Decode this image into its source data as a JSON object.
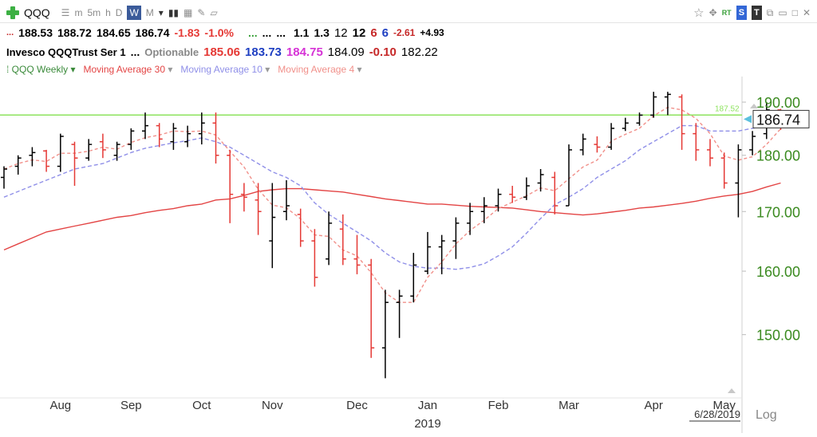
{
  "toolbar": {
    "symbol": "QQQ",
    "intervals": [
      "m",
      "5m",
      "h",
      "D",
      "W",
      "M"
    ],
    "active_interval": "W",
    "badges": [
      "RT",
      "S",
      "T"
    ]
  },
  "quote1": {
    "prefix": "...",
    "open": "188.53",
    "high": "188.72",
    "low": "184.65",
    "close": "186.74",
    "change": "-1.83",
    "change_pct": "-1.0%",
    "dots1": "...",
    "dots2": "...",
    "dots3": "...",
    "v1": "1.1",
    "v2": "1.3",
    "v3": "12",
    "v4": "12",
    "v5": "6",
    "v6": "6",
    "v7": "-2.61",
    "v8": "+4.93"
  },
  "quote2": {
    "name": "Invesco QQQTrust Ser 1",
    "dots": "...",
    "optionable": "Optionable",
    "m1": "185.06",
    "m2": "183.73",
    "m3": "184.75",
    "m4": "184.09",
    "m5": "-0.10",
    "m6": "182.22"
  },
  "legend": {
    "series": [
      "QQQ Weekly",
      "Moving Average 30",
      "Moving Average 10",
      "Moving Average 4"
    ]
  },
  "colors": {
    "up": "#000000",
    "down": "#e53935",
    "ma30": "#e34444",
    "ma10": "#8f8fe8",
    "ma4": "#f1908a",
    "hline": "#8de35e",
    "axis": "#3a8a1f"
  },
  "chart_data": {
    "type": "bar",
    "title": "",
    "ylim": [
      141,
      195
    ],
    "y_ticks": [
      "190.00",
      "180.00",
      "170.00",
      "160.00",
      "150.00"
    ],
    "y_tick_values": [
      190,
      180,
      170,
      160,
      150
    ],
    "x_month_labels": [
      "Aug",
      "Sep",
      "Oct",
      "Nov",
      "Dec",
      "Jan",
      "Feb",
      "Mar",
      "Apr",
      "May"
    ],
    "x_month_week_index": [
      4,
      9,
      14,
      19,
      25,
      30,
      35,
      40,
      46,
      51
    ],
    "year_label": "2019",
    "date_label": "6/28/2019",
    "scale_label": "Log",
    "last_price": "186.74",
    "last_price_value": 186.74,
    "hline_value": 187.52,
    "hline_label": "187.52",
    "weeks": [
      {
        "o": 176,
        "h": 178,
        "l": 174,
        "c": 177.5
      },
      {
        "o": 178,
        "h": 180,
        "l": 176.5,
        "c": 179.5
      },
      {
        "o": 180,
        "h": 181.5,
        "l": 178,
        "c": 180.5
      },
      {
        "o": 180.8,
        "h": 181,
        "l": 177,
        "c": 178
      },
      {
        "o": 178,
        "h": 184,
        "l": 177,
        "c": 183.5
      },
      {
        "o": 182,
        "h": 182.5,
        "l": 174.5,
        "c": 179.5
      },
      {
        "o": 179.5,
        "h": 183,
        "l": 179,
        "c": 182
      },
      {
        "o": 182.5,
        "h": 184,
        "l": 179.5,
        "c": 181
      },
      {
        "o": 180,
        "h": 182.5,
        "l": 179,
        "c": 182
      },
      {
        "o": 182,
        "h": 185,
        "l": 181,
        "c": 184.5
      },
      {
        "o": 184.5,
        "h": 188,
        "l": 183,
        "c": 185.5
      },
      {
        "o": 185.5,
        "h": 186,
        "l": 181.5,
        "c": 183
      },
      {
        "o": 182.5,
        "h": 186,
        "l": 181,
        "c": 185
      },
      {
        "o": 182.5,
        "h": 185.5,
        "l": 181.5,
        "c": 184
      },
      {
        "o": 184,
        "h": 188,
        "l": 182,
        "c": 186
      },
      {
        "o": 186,
        "h": 188,
        "l": 178.5,
        "c": 180
      },
      {
        "o": 180,
        "h": 181,
        "l": 168,
        "c": 173
      },
      {
        "o": 173,
        "h": 175,
        "l": 170,
        "c": 172.5
      },
      {
        "o": 172,
        "h": 175,
        "l": 166,
        "c": 170
      },
      {
        "o": 165,
        "h": 175,
        "l": 160.5,
        "c": 169
      },
      {
        "o": 170,
        "h": 175.5,
        "l": 168.5,
        "c": 171
      },
      {
        "o": 169.5,
        "h": 170.5,
        "l": 164,
        "c": 165
      },
      {
        "o": 165,
        "h": 167,
        "l": 157.5,
        "c": 159
      },
      {
        "o": 162,
        "h": 170,
        "l": 161,
        "c": 168
      },
      {
        "o": 167,
        "h": 169.5,
        "l": 161,
        "c": 162
      },
      {
        "o": 162,
        "h": 166,
        "l": 159.5,
        "c": 161
      },
      {
        "o": 161,
        "h": 162,
        "l": 146.5,
        "c": 148
      },
      {
        "o": 148,
        "h": 157,
        "l": 143.5,
        "c": 155
      },
      {
        "o": 155,
        "h": 157,
        "l": 149.5,
        "c": 156
      },
      {
        "o": 156,
        "h": 163,
        "l": 155,
        "c": 161
      },
      {
        "o": 160,
        "h": 166.5,
        "l": 159.5,
        "c": 164
      },
      {
        "o": 164,
        "h": 166,
        "l": 159.5,
        "c": 165
      },
      {
        "o": 165,
        "h": 169,
        "l": 162,
        "c": 168
      },
      {
        "o": 168,
        "h": 171.5,
        "l": 166,
        "c": 170
      },
      {
        "o": 170,
        "h": 172.5,
        "l": 168,
        "c": 171
      },
      {
        "o": 171,
        "h": 174,
        "l": 170,
        "c": 173
      },
      {
        "o": 173,
        "h": 174.5,
        "l": 171.5,
        "c": 172.5
      },
      {
        "o": 172.5,
        "h": 176,
        "l": 172,
        "c": 174.5
      },
      {
        "o": 175,
        "h": 177.5,
        "l": 173.5,
        "c": 176.5
      },
      {
        "o": 176,
        "h": 177,
        "l": 169.5,
        "c": 171
      },
      {
        "o": 171,
        "h": 182,
        "l": 171,
        "c": 181
      },
      {
        "o": 181,
        "h": 184,
        "l": 180,
        "c": 183
      },
      {
        "o": 182,
        "h": 183.5,
        "l": 180.5,
        "c": 181.5
      },
      {
        "o": 181.5,
        "h": 186,
        "l": 181,
        "c": 185
      },
      {
        "o": 185,
        "h": 187,
        "l": 184.5,
        "c": 186
      },
      {
        "o": 186,
        "h": 188,
        "l": 185.5,
        "c": 187.5
      },
      {
        "o": 187.5,
        "h": 192,
        "l": 187,
        "c": 191
      },
      {
        "o": 191,
        "h": 192,
        "l": 187.5,
        "c": 191.5
      },
      {
        "o": 191,
        "h": 191.5,
        "l": 181,
        "c": 184
      },
      {
        "o": 184,
        "h": 186,
        "l": 179,
        "c": 181
      },
      {
        "o": 181,
        "h": 183,
        "l": 178,
        "c": 179.5
      },
      {
        "o": 179.5,
        "h": 180.5,
        "l": 174,
        "c": 175
      },
      {
        "o": 175,
        "h": 182,
        "l": 169,
        "c": 181
      },
      {
        "o": 181,
        "h": 184.5,
        "l": 180,
        "c": 183.5
      },
      {
        "o": 184,
        "h": 190,
        "l": 183,
        "c": 188.5
      },
      {
        "o": 188.5,
        "h": 188.7,
        "l": 184.7,
        "c": 186.74
      }
    ],
    "ma30": [
      163.5,
      164.5,
      165.5,
      166.5,
      167,
      167.5,
      168,
      168.5,
      169,
      169.3,
      169.8,
      170.2,
      170.5,
      171,
      171.3,
      172,
      172.2,
      172.8,
      173.5,
      173.8,
      174,
      174,
      173.8,
      173.6,
      173.4,
      173,
      172.6,
      172.2,
      171.9,
      171.6,
      171.3,
      171.3,
      171.1,
      170.9,
      170.8,
      170.7,
      170.6,
      170.3,
      170,
      169.8,
      169.6,
      169.4,
      169.6,
      169.9,
      170.2,
      170.6,
      170.8,
      171.1,
      171.4,
      171.8,
      172.3,
      172.7,
      173,
      173.5,
      174.3,
      175
    ],
    "ma10": [
      172.5,
      173.5,
      174.5,
      175.5,
      176.5,
      177.5,
      178,
      178.5,
      179.5,
      180.5,
      181.3,
      181.8,
      182.3,
      182.7,
      183.2,
      182.5,
      181.5,
      180,
      178.5,
      177,
      176,
      174.5,
      171.5,
      169.5,
      168,
      166.5,
      165,
      163,
      161.5,
      160.8,
      160.5,
      160.5,
      160.3,
      160.6,
      161.2,
      162.5,
      164,
      166.3,
      168.8,
      171.2,
      172.5,
      174,
      176,
      177.5,
      179,
      181,
      182.5,
      184,
      185.5,
      185.5,
      184.5,
      184.5,
      184.5,
      185,
      185.5,
      186
    ]
  }
}
